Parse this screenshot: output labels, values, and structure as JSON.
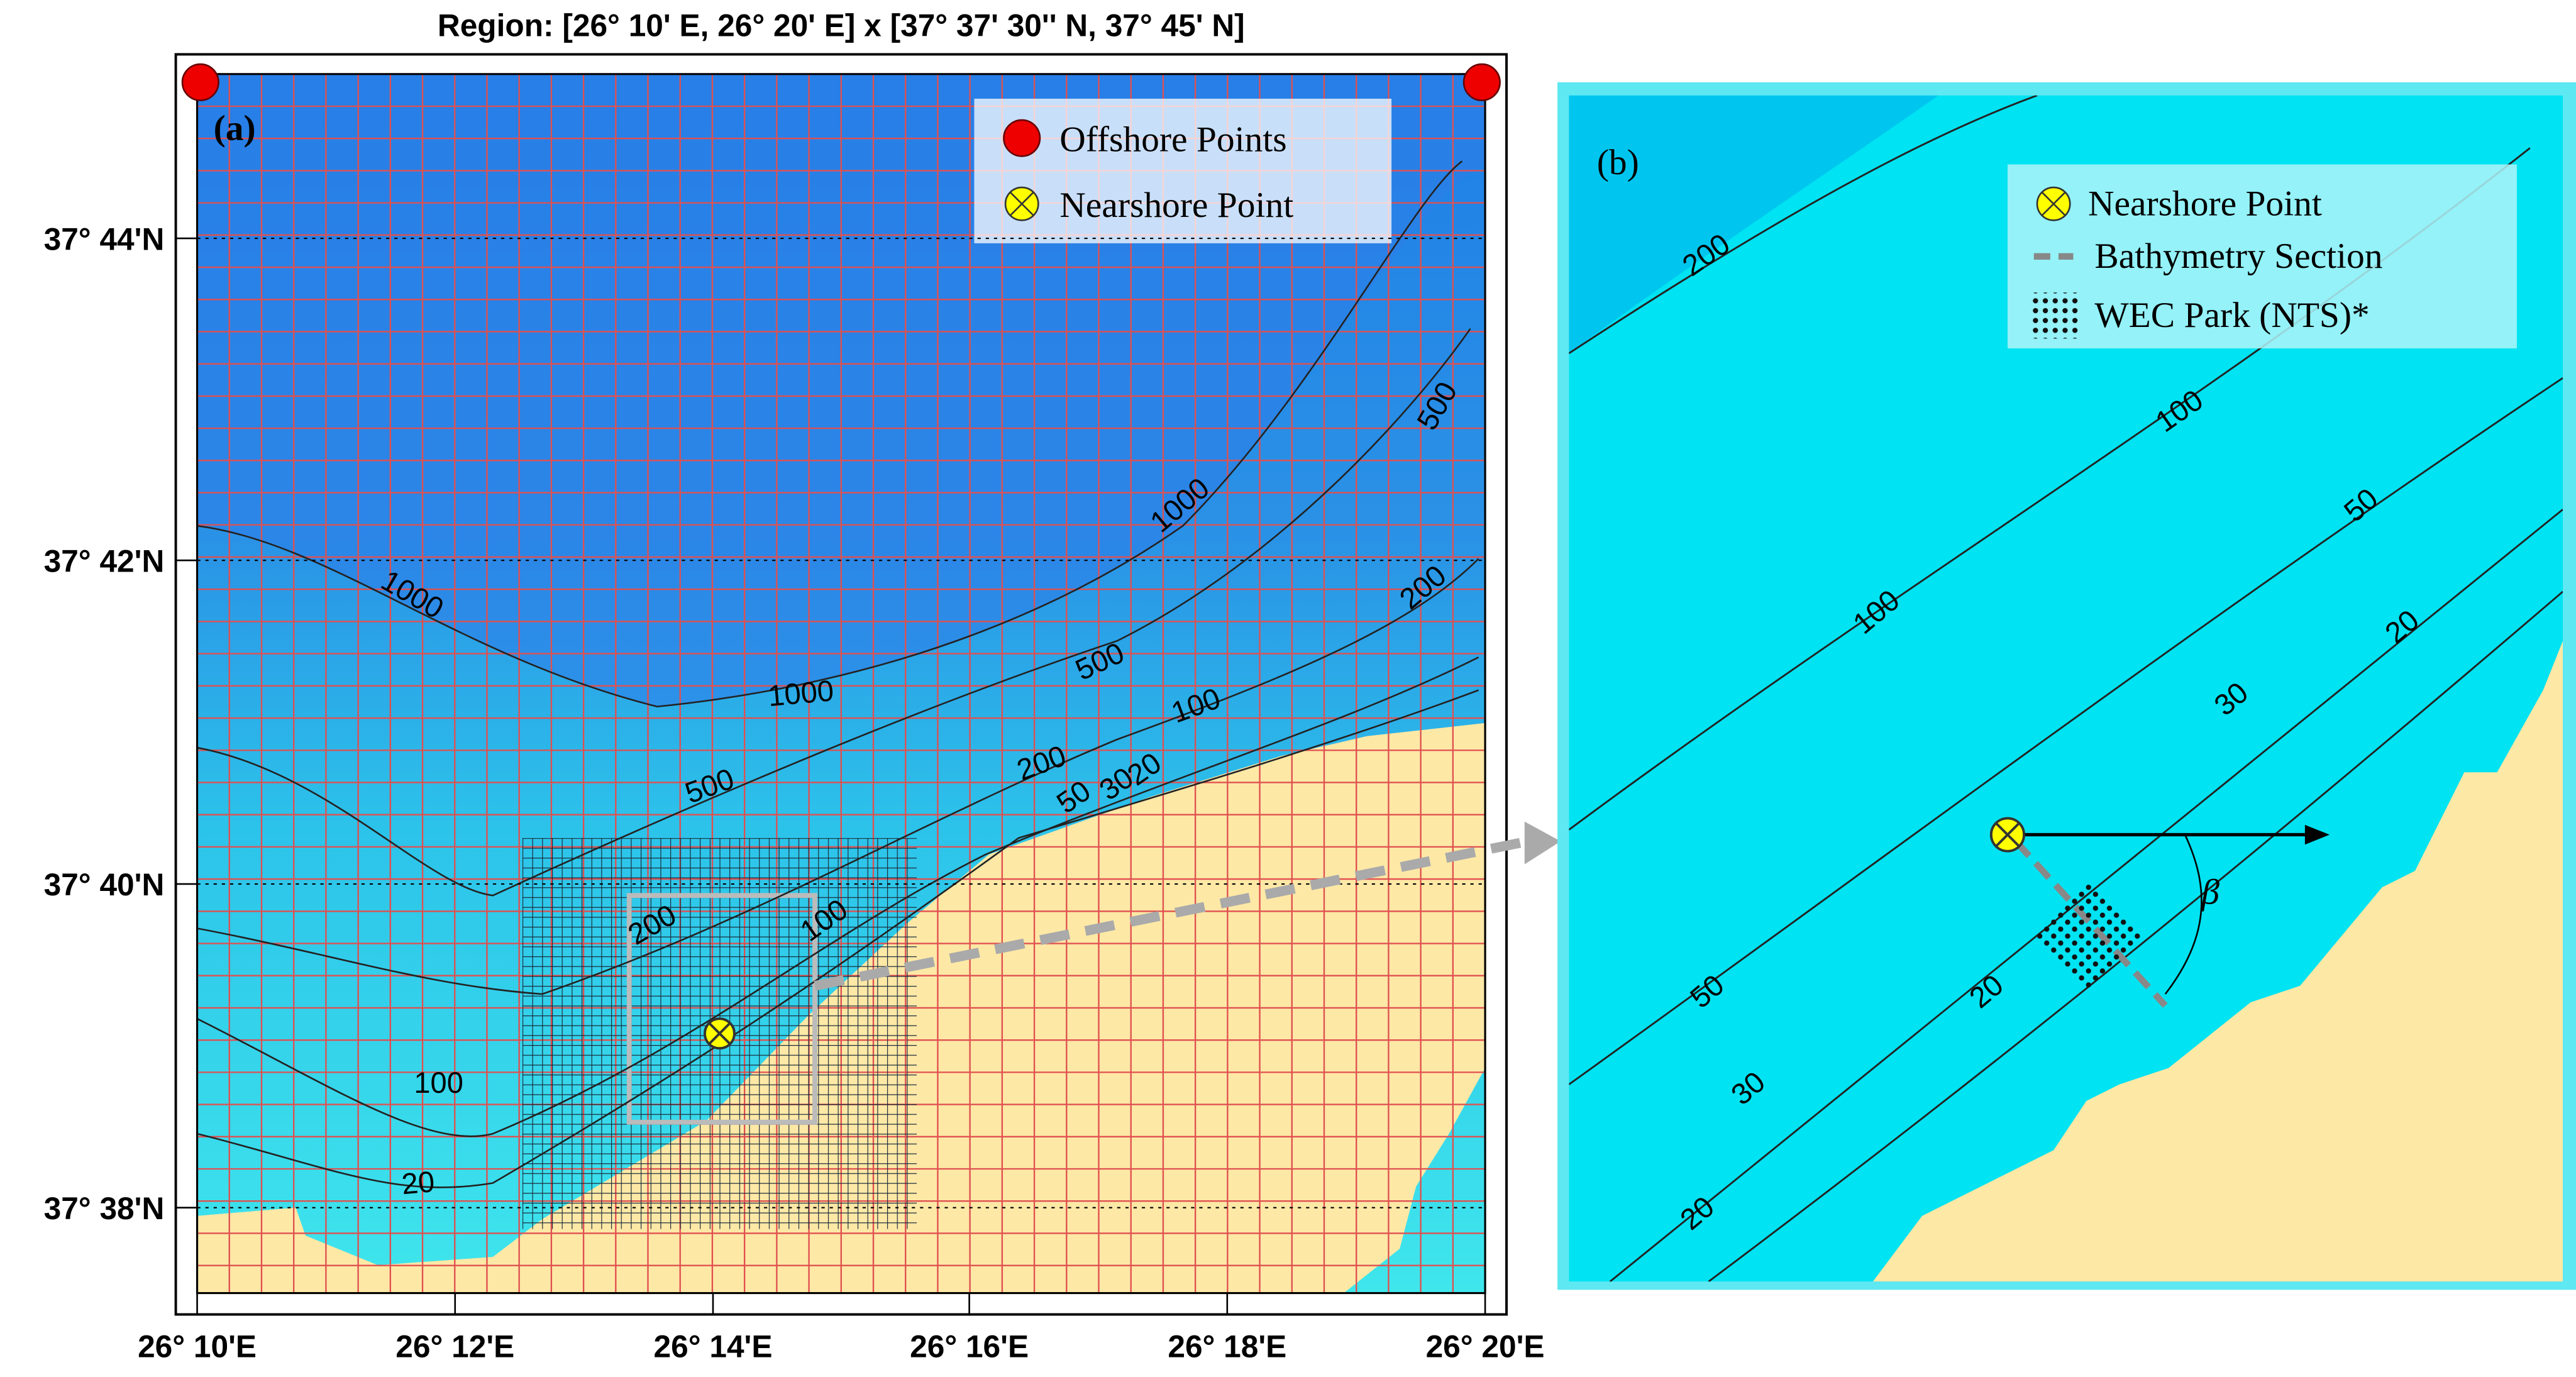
{
  "panel_a": {
    "title": "Region: [26° 10' E, 26° 20' E] x [37° 37' 30'' N, 37° 45' N]",
    "label": "(a)",
    "xticks": [
      "26° 10'E",
      "26° 12'E",
      "26° 14'E",
      "26° 16'E",
      "26° 18'E",
      "26° 20'E"
    ],
    "yticks": [
      "37° 44'N",
      "37° 42'N",
      "37° 40'N",
      "37° 38'N"
    ],
    "legend": [
      "Offshore Points",
      "Nearshore Point"
    ],
    "contour_labels": [
      "1000",
      "1000",
      "1000",
      "500",
      "500",
      "500",
      "200",
      "200",
      "200",
      "100",
      "100",
      "100",
      "50",
      "30",
      "20",
      "20"
    ]
  },
  "panel_b": {
    "label": "(b)",
    "legend": [
      "Nearshore Point",
      "Bathymetry Section",
      "WEC Park (NTS)*"
    ],
    "angle_label": "β",
    "contour_labels": [
      "200",
      "100",
      "100",
      "50",
      "50",
      "30",
      "30",
      "20",
      "20",
      "20"
    ]
  }
}
